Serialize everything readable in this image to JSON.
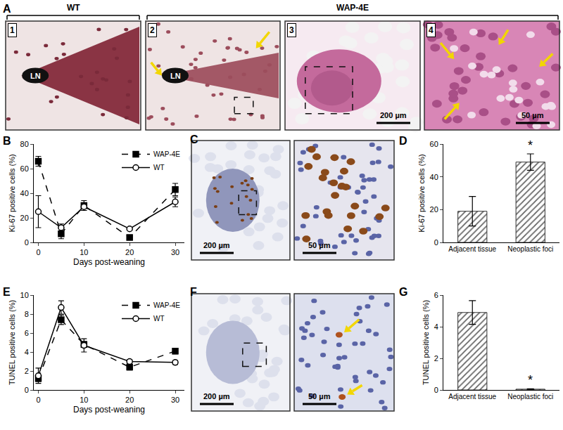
{
  "panels": {
    "A": {
      "label": "A",
      "groups": [
        "WT",
        "WAP-4E"
      ],
      "images": [
        {
          "number": "1",
          "texts": [
            "LN"
          ]
        },
        {
          "number": "2",
          "texts": [
            "LN"
          ]
        },
        {
          "number": "3",
          "scale_bar": "200 µm"
        },
        {
          "number": "4",
          "scale_bar": "50 µm"
        }
      ]
    },
    "C": {
      "label": "C",
      "images": [
        {
          "scale_bar": "200 µm"
        },
        {
          "scale_bar": "50 µm"
        }
      ]
    },
    "F": {
      "label": "F",
      "images": [
        {
          "scale_bar": "200 µm"
        },
        {
          "scale_bar": "50 µm"
        }
      ]
    }
  },
  "chart_data": [
    {
      "panel_label": "B",
      "type": "line",
      "x_label": "Days post-weaning",
      "y_label": "Ki-67 positive cells (%)",
      "x": [
        0,
        5,
        10,
        20,
        30
      ],
      "xlim": [
        -1,
        32
      ],
      "xticks": [
        0,
        10,
        20,
        30
      ],
      "ylim": [
        0,
        80
      ],
      "yticks": [
        0,
        20,
        40,
        60,
        80
      ],
      "grid": false,
      "legend": "top right",
      "series": [
        {
          "name": "WAP-4E",
          "color": "#000000",
          "line_style": "dashed",
          "marker": "square",
          "values": [
            66,
            7,
            30,
            4,
            43
          ],
          "errors": [
            4,
            4,
            4,
            1,
            5
          ]
        },
        {
          "name": "WT",
          "color": "#000000",
          "line_style": "solid",
          "marker": "circle-open",
          "values": [
            25,
            12,
            29,
            11,
            33
          ],
          "errors": [
            13,
            3,
            3,
            1,
            4
          ]
        }
      ]
    },
    {
      "panel_label": "D",
      "type": "bar",
      "y_label": "Ki-67 positive cells (%)",
      "categories": [
        "Adjacent tissue",
        "Neoplastic foci"
      ],
      "values": [
        19,
        49
      ],
      "errors": [
        9,
        5
      ],
      "ylim": [
        0,
        60
      ],
      "yticks": [
        0,
        20,
        40,
        60
      ],
      "grid": false,
      "color": "#666666",
      "marker": "hatched",
      "annotations": [
        {
          "category": "Neoplastic foci",
          "text": "*"
        }
      ]
    },
    {
      "panel_label": "E",
      "type": "line",
      "x_label": "Days post-weaning",
      "y_label": "TUNEL positive cells (%)",
      "x": [
        0,
        5,
        10,
        20,
        30
      ],
      "xlim": [
        -1,
        32
      ],
      "xticks": [
        0,
        10,
        20,
        30
      ],
      "ylim": [
        0,
        10
      ],
      "yticks": [
        0,
        2,
        4,
        6,
        8,
        10
      ],
      "grid": false,
      "legend": "top right",
      "series": [
        {
          "name": "WAP-4E",
          "color": "#000000",
          "line_style": "dashed",
          "marker": "square",
          "values": [
            1.2,
            7.4,
            4.8,
            2.4,
            4.1
          ],
          "errors": [
            0.3,
            0.5,
            0.3,
            0.3,
            0.3
          ]
        },
        {
          "name": "WT",
          "color": "#000000",
          "line_style": "solid",
          "marker": "circle-open",
          "values": [
            1.5,
            8.7,
            4.7,
            3.0,
            2.9
          ],
          "errors": [
            0.8,
            0.7,
            0.7,
            0.2,
            0.2
          ]
        }
      ]
    },
    {
      "panel_label": "G",
      "type": "bar",
      "y_label": "TUNEL positive cells (%)",
      "categories": [
        "Adjacent tissue",
        "Neoplastic foci"
      ],
      "values": [
        4.9,
        0.05
      ],
      "errors": [
        0.75,
        0.02
      ],
      "ylim": [
        0,
        6
      ],
      "yticks": [
        0,
        2,
        4,
        6
      ],
      "grid": false,
      "color": "#666666",
      "marker": "hatched",
      "annotations": [
        {
          "category": "Neoplastic foci",
          "text": "*"
        }
      ]
    }
  ]
}
